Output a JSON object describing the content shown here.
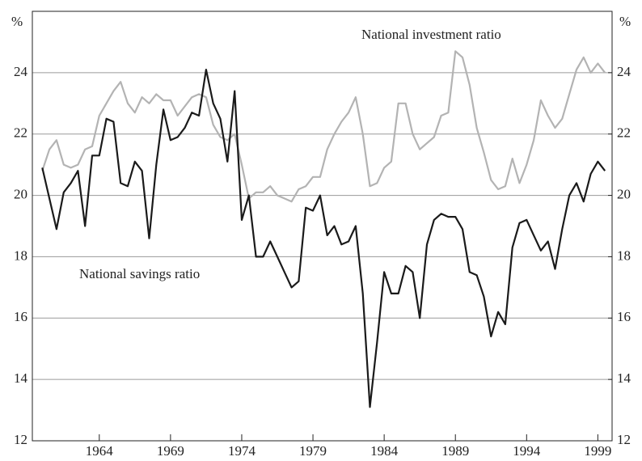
{
  "chart_data": {
    "type": "line",
    "y_unit_label": "%",
    "y2_unit_label": "%",
    "annotations": [
      "National investment ratio",
      "National savings ratio"
    ],
    "x": [
      1960,
      1960.5,
      1961,
      1961.5,
      1962,
      1962.5,
      1963,
      1963.5,
      1964,
      1964.5,
      1965,
      1965.5,
      1966,
      1966.5,
      1967,
      1967.5,
      1968,
      1968.5,
      1969,
      1969.5,
      1970,
      1970.5,
      1971,
      1971.5,
      1972,
      1972.5,
      1973,
      1973.5,
      1974,
      1974.5,
      1975,
      1975.5,
      1976,
      1976.5,
      1977,
      1977.5,
      1978,
      1978.5,
      1979,
      1979.5,
      1980,
      1980.5,
      1981,
      1981.5,
      1982,
      1982.5,
      1983,
      1983.5,
      1984,
      1984.5,
      1985,
      1985.5,
      1986,
      1986.5,
      1987,
      1987.5,
      1988,
      1988.5,
      1989,
      1989.5,
      1990,
      1990.5,
      1991,
      1991.5,
      1992,
      1992.5,
      1993,
      1993.5,
      1994,
      1994.5,
      1995,
      1995.5,
      1996,
      1996.5,
      1997,
      1997.5,
      1998,
      1998.5,
      1999,
      1999.5
    ],
    "series": [
      {
        "name": "National investment ratio",
        "color": "#b3b3b3",
        "values": [
          20.8,
          21.5,
          21.8,
          21.0,
          20.9,
          21.0,
          21.5,
          21.6,
          22.6,
          23.0,
          23.4,
          23.7,
          23.0,
          22.7,
          23.2,
          23.0,
          23.3,
          23.1,
          23.1,
          22.6,
          22.9,
          23.2,
          23.3,
          23.2,
          22.3,
          21.9,
          21.8,
          22.0,
          21.0,
          19.9,
          20.1,
          20.1,
          20.3,
          20.0,
          19.9,
          19.8,
          20.2,
          20.3,
          20.6,
          20.6,
          21.5,
          22.0,
          22.4,
          22.7,
          23.2,
          22.0,
          20.3,
          20.4,
          20.9,
          21.1,
          23.0,
          23.0,
          22.0,
          21.5,
          21.7,
          21.9,
          22.6,
          22.7,
          24.7,
          24.5,
          23.6,
          22.2,
          21.4,
          20.5,
          20.2,
          20.3,
          21.2,
          20.4,
          21.0,
          21.8,
          23.1,
          22.6,
          22.2,
          22.5,
          23.3,
          24.1,
          24.5,
          24.0,
          24.3,
          24.0
        ]
      },
      {
        "name": "National savings ratio",
        "color": "#1a1a1a",
        "values": [
          20.9,
          19.9,
          18.9,
          20.1,
          20.4,
          20.8,
          19.0,
          21.3,
          21.3,
          22.5,
          22.4,
          20.4,
          20.3,
          21.1,
          20.8,
          18.6,
          21.0,
          22.8,
          21.8,
          21.9,
          22.2,
          22.7,
          22.6,
          24.1,
          23.0,
          22.5,
          21.1,
          23.4,
          19.2,
          20.0,
          18.0,
          18.0,
          18.5,
          18.0,
          17.5,
          17.0,
          17.2,
          19.6,
          19.5,
          20.0,
          18.7,
          19.0,
          18.4,
          18.5,
          19.0,
          16.8,
          13.1,
          15.2,
          17.5,
          16.8,
          16.8,
          17.7,
          17.5,
          16.0,
          18.4,
          19.2,
          19.4,
          19.3,
          19.3,
          18.9,
          17.5,
          17.4,
          16.7,
          15.4,
          16.2,
          15.8,
          18.3,
          19.1,
          19.2,
          18.7,
          18.2,
          18.5,
          17.6,
          18.9,
          20.0,
          20.4,
          19.8,
          20.7,
          21.1,
          20.8
        ]
      }
    ],
    "xlim": [
      1959.3,
      2000
    ],
    "xticks": [
      1964,
      1969,
      1974,
      1979,
      1984,
      1989,
      1994,
      1999
    ],
    "ylim": [
      12,
      26
    ],
    "yticks": [
      12,
      14,
      16,
      18,
      20,
      22,
      24
    ],
    "y2lim": [
      12,
      26
    ],
    "y2ticks": [
      12,
      14,
      16,
      18,
      20,
      22,
      24
    ],
    "grid": true
  }
}
